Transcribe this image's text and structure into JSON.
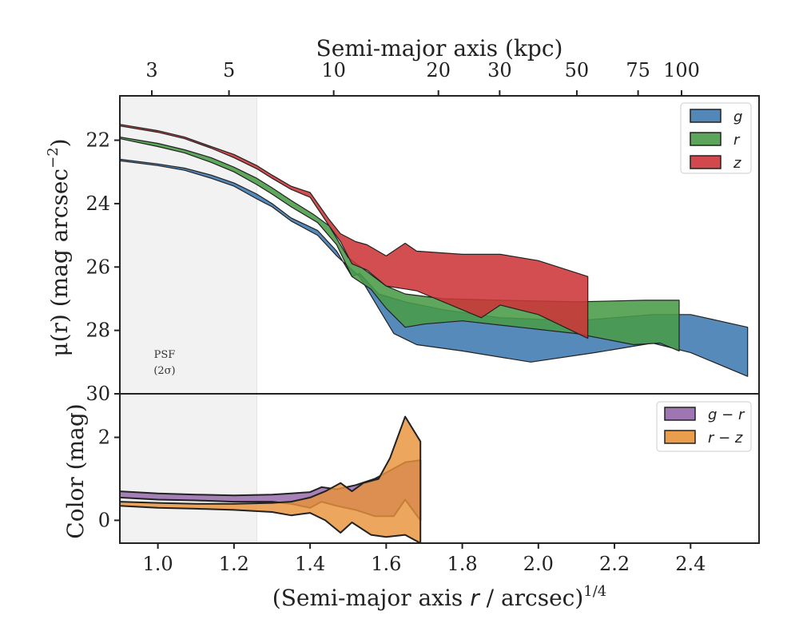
{
  "chart_data": [
    {
      "type": "area",
      "panel": "surface-brightness",
      "top_xlabel": "Semi-major axis (kpc)",
      "top_ticks": [
        3,
        5,
        10,
        20,
        30,
        50,
        75,
        100
      ],
      "ylabel_prefix": "μ(r) (mag arcsec",
      "ylabel_exp": "−2",
      "ylabel_suffix": ")",
      "ylim": [
        30,
        20.6
      ],
      "yticks": [
        22,
        24,
        26,
        28,
        30
      ],
      "xlim": [
        0.9,
        2.58
      ],
      "psf_region": [
        0.9,
        1.26
      ],
      "psf_label_line1": "PSF",
      "psf_label_line2": "(2σ)",
      "legend": "top-right",
      "series": [
        {
          "name": "g",
          "color": "#3f7ab0",
          "upper": [
            [
              0.9,
              22.6
            ],
            [
              1.0,
              22.75
            ],
            [
              1.07,
              22.88
            ],
            [
              1.14,
              23.1
            ],
            [
              1.2,
              23.35
            ],
            [
              1.26,
              23.7
            ],
            [
              1.3,
              24.0
            ],
            [
              1.35,
              24.45
            ],
            [
              1.42,
              24.85
            ],
            [
              1.47,
              25.5
            ],
            [
              1.51,
              26.3
            ],
            [
              1.53,
              26.2
            ],
            [
              1.58,
              26.85
            ],
            [
              1.65,
              27.1
            ],
            [
              1.75,
              27.35
            ],
            [
              1.9,
              27.6
            ],
            [
              2.1,
              27.7
            ],
            [
              2.3,
              27.5
            ],
            [
              2.4,
              27.5
            ],
            [
              2.55,
              27.9
            ]
          ],
          "lower": [
            [
              0.9,
              22.65
            ],
            [
              1.0,
              22.8
            ],
            [
              1.07,
              22.95
            ],
            [
              1.14,
              23.2
            ],
            [
              1.2,
              23.45
            ],
            [
              1.26,
              23.85
            ],
            [
              1.3,
              24.1
            ],
            [
              1.35,
              24.55
            ],
            [
              1.42,
              25.0
            ],
            [
              1.47,
              25.65
            ],
            [
              1.53,
              26.3
            ],
            [
              1.58,
              27.3
            ],
            [
              1.62,
              28.1
            ],
            [
              1.68,
              28.45
            ],
            [
              1.8,
              28.65
            ],
            [
              1.98,
              29.0
            ],
            [
              2.15,
              28.7
            ],
            [
              2.3,
              28.4
            ],
            [
              2.4,
              28.7
            ],
            [
              2.55,
              29.45
            ]
          ]
        },
        {
          "name": "r",
          "color": "#4a9b48",
          "upper": [
            [
              0.9,
              21.9
            ],
            [
              1.0,
              22.1
            ],
            [
              1.07,
              22.3
            ],
            [
              1.14,
              22.55
            ],
            [
              1.2,
              22.85
            ],
            [
              1.26,
              23.2
            ],
            [
              1.3,
              23.5
            ],
            [
              1.35,
              23.9
            ],
            [
              1.41,
              24.35
            ],
            [
              1.45,
              24.7
            ],
            [
              1.5,
              25.7
            ],
            [
              1.55,
              26.15
            ],
            [
              1.6,
              26.6
            ],
            [
              1.65,
              26.85
            ],
            [
              1.75,
              27.0
            ],
            [
              1.9,
              27.05
            ],
            [
              2.1,
              27.1
            ],
            [
              2.28,
              27.05
            ],
            [
              2.37,
              27.05
            ]
          ],
          "lower": [
            [
              0.9,
              21.95
            ],
            [
              1.0,
              22.2
            ],
            [
              1.07,
              22.4
            ],
            [
              1.14,
              22.7
            ],
            [
              1.2,
              23.0
            ],
            [
              1.26,
              23.4
            ],
            [
              1.3,
              23.7
            ],
            [
              1.35,
              24.1
            ],
            [
              1.42,
              24.6
            ],
            [
              1.47,
              25.3
            ],
            [
              1.51,
              26.3
            ],
            [
              1.56,
              26.7
            ],
            [
              1.6,
              27.3
            ],
            [
              1.65,
              27.9
            ],
            [
              1.7,
              27.8
            ],
            [
              1.8,
              27.7
            ],
            [
              1.95,
              27.9
            ],
            [
              2.1,
              28.1
            ],
            [
              2.25,
              28.45
            ],
            [
              2.32,
              28.4
            ],
            [
              2.37,
              28.65
            ]
          ]
        },
        {
          "name": "z",
          "color": "#cc3538",
          "upper": [
            [
              0.9,
              21.5
            ],
            [
              1.0,
              21.7
            ],
            [
              1.07,
              21.9
            ],
            [
              1.14,
              22.2
            ],
            [
              1.2,
              22.45
            ],
            [
              1.26,
              22.8
            ],
            [
              1.3,
              23.1
            ],
            [
              1.35,
              23.45
            ],
            [
              1.4,
              23.65
            ],
            [
              1.45,
              24.5
            ],
            [
              1.48,
              24.95
            ],
            [
              1.52,
              25.2
            ],
            [
              1.55,
              25.3
            ],
            [
              1.6,
              25.65
            ],
            [
              1.65,
              25.25
            ],
            [
              1.68,
              25.5
            ],
            [
              1.8,
              25.6
            ],
            [
              1.9,
              25.6
            ],
            [
              2.0,
              25.8
            ],
            [
              2.13,
              26.3
            ]
          ],
          "lower": [
            [
              0.9,
              21.55
            ],
            [
              1.0,
              21.75
            ],
            [
              1.07,
              21.95
            ],
            [
              1.14,
              22.25
            ],
            [
              1.2,
              22.55
            ],
            [
              1.26,
              22.9
            ],
            [
              1.3,
              23.2
            ],
            [
              1.35,
              23.55
            ],
            [
              1.4,
              23.8
            ],
            [
              1.45,
              24.7
            ],
            [
              1.48,
              25.2
            ],
            [
              1.51,
              25.9
            ],
            [
              1.55,
              26.1
            ],
            [
              1.6,
              26.6
            ],
            [
              1.68,
              26.75
            ],
            [
              1.75,
              27.1
            ],
            [
              1.85,
              27.6
            ],
            [
              1.9,
              27.2
            ],
            [
              2.0,
              27.5
            ],
            [
              2.13,
              28.25
            ]
          ]
        }
      ]
    },
    {
      "type": "area",
      "panel": "color",
      "xlabel_main": "(Semi-major axis ",
      "xlabel_var": "r",
      "xlabel_unit": " / arcsec)",
      "xlabel_exp": "1/4",
      "ylabel": "Color (mag)",
      "ylim": [
        -0.55,
        3.05
      ],
      "yticks": [
        0,
        2
      ],
      "xticks": [
        1.0,
        1.2,
        1.4,
        1.6,
        1.8,
        2.0,
        2.2,
        2.4
      ],
      "xtick_labels": [
        "1.0",
        "1.2",
        "1.4",
        "1.6",
        "1.8",
        "2.0",
        "2.2",
        "2.4"
      ],
      "legend": "top-right",
      "series": [
        {
          "name": "g − r",
          "color": "#9467a8",
          "upper": [
            [
              0.9,
              0.7
            ],
            [
              1.0,
              0.65
            ],
            [
              1.1,
              0.62
            ],
            [
              1.2,
              0.6
            ],
            [
              1.3,
              0.62
            ],
            [
              1.35,
              0.65
            ],
            [
              1.4,
              0.68
            ],
            [
              1.43,
              0.8
            ],
            [
              1.47,
              0.75
            ],
            [
              1.52,
              0.85
            ],
            [
              1.57,
              1.0
            ],
            [
              1.6,
              1.15
            ],
            [
              1.65,
              1.4
            ],
            [
              1.69,
              1.45
            ]
          ],
          "lower": [
            [
              0.9,
              0.55
            ],
            [
              1.0,
              0.5
            ],
            [
              1.1,
              0.48
            ],
            [
              1.2,
              0.45
            ],
            [
              1.3,
              0.45
            ],
            [
              1.35,
              0.4
            ],
            [
              1.4,
              0.3
            ],
            [
              1.43,
              0.45
            ],
            [
              1.47,
              0.35
            ],
            [
              1.52,
              0.25
            ],
            [
              1.57,
              0.1
            ],
            [
              1.62,
              0.1
            ],
            [
              1.65,
              0.5
            ],
            [
              1.69,
              0.0
            ]
          ]
        },
        {
          "name": "r − z",
          "color": "#e8923a",
          "upper": [
            [
              0.9,
              0.45
            ],
            [
              1.0,
              0.42
            ],
            [
              1.1,
              0.4
            ],
            [
              1.2,
              0.4
            ],
            [
              1.3,
              0.42
            ],
            [
              1.35,
              0.45
            ],
            [
              1.4,
              0.55
            ],
            [
              1.44,
              0.7
            ],
            [
              1.48,
              0.9
            ],
            [
              1.51,
              0.7
            ],
            [
              1.54,
              0.9
            ],
            [
              1.58,
              1.0
            ],
            [
              1.61,
              1.5
            ],
            [
              1.65,
              2.5
            ],
            [
              1.69,
              1.9
            ]
          ],
          "lower": [
            [
              0.9,
              0.35
            ],
            [
              1.0,
              0.3
            ],
            [
              1.1,
              0.28
            ],
            [
              1.2,
              0.25
            ],
            [
              1.3,
              0.2
            ],
            [
              1.35,
              0.12
            ],
            [
              1.4,
              0.18
            ],
            [
              1.44,
              0.0
            ],
            [
              1.48,
              -0.3
            ],
            [
              1.51,
              -0.05
            ],
            [
              1.56,
              -0.35
            ],
            [
              1.6,
              -0.4
            ],
            [
              1.65,
              -0.35
            ],
            [
              1.69,
              -0.6
            ]
          ]
        }
      ]
    }
  ]
}
